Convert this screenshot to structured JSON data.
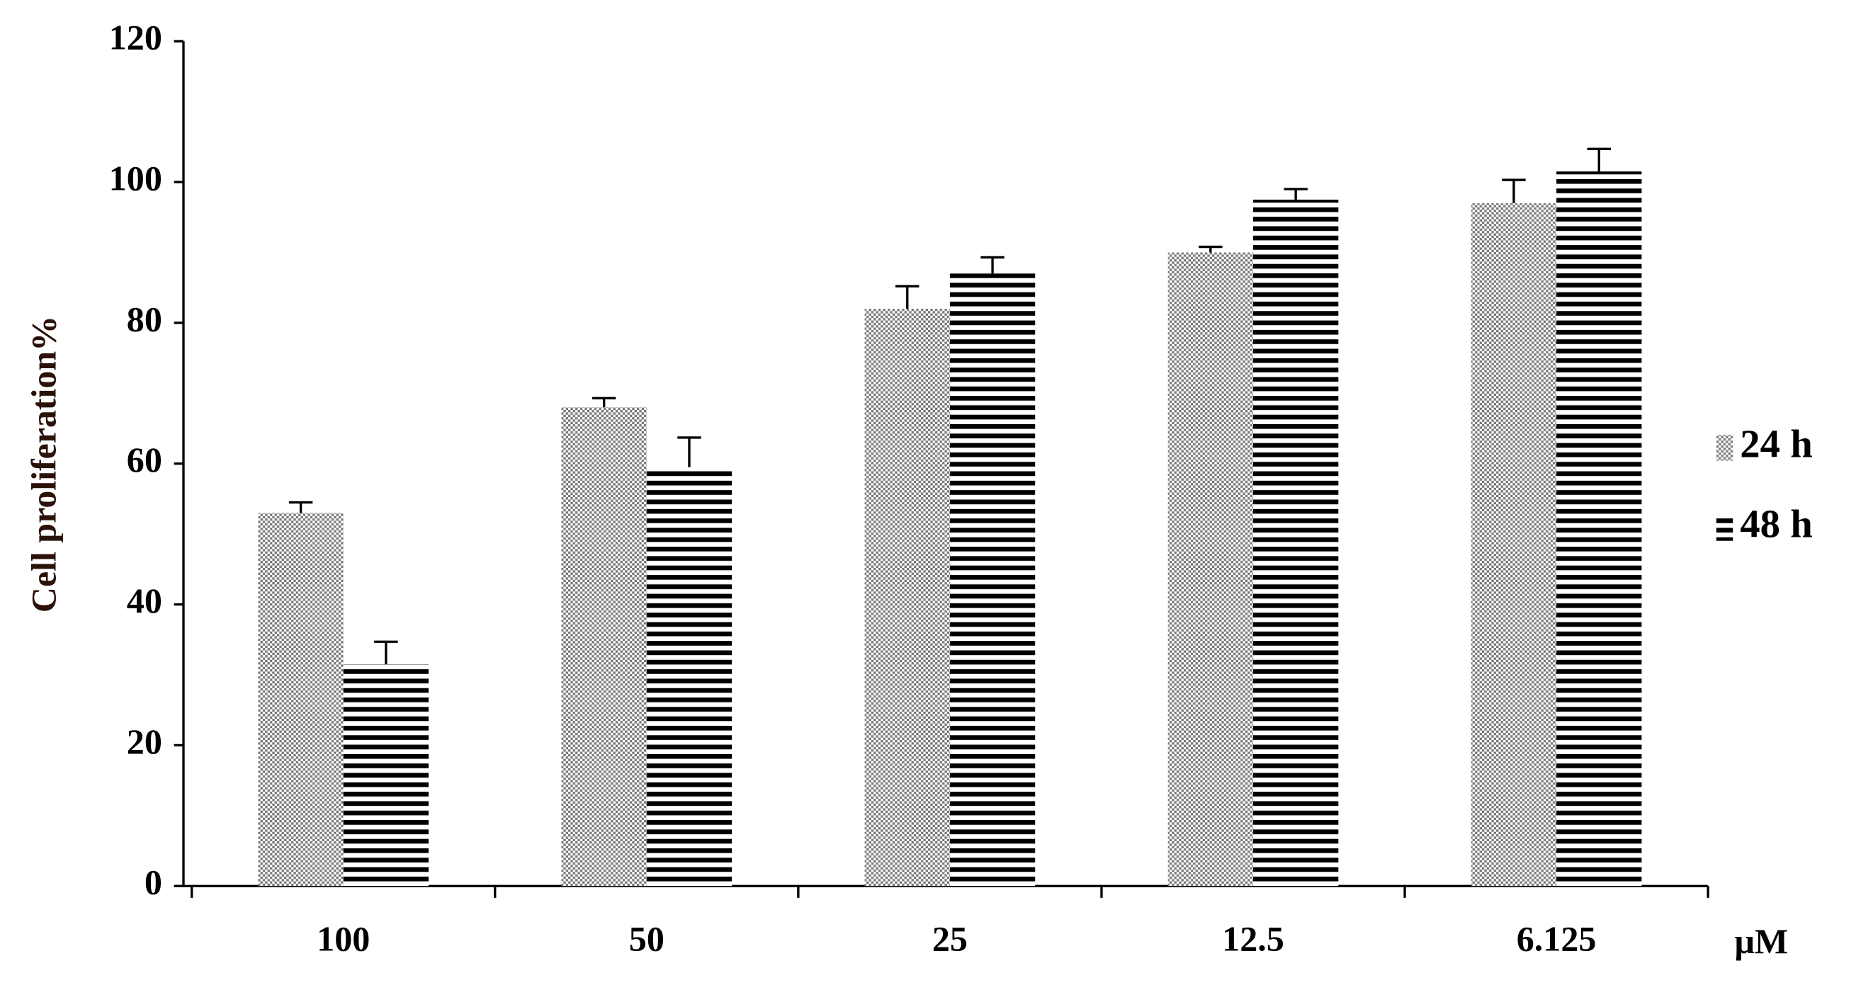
{
  "chart_data": {
    "type": "bar",
    "y_label": "Cell proliferation%",
    "x_unit": "μM",
    "categories": [
      "100",
      "50",
      "25",
      "12.5",
      "6.125"
    ],
    "series": [
      {
        "name": "24 h",
        "color": "#7a7a7a",
        "values": [
          53,
          68,
          82,
          90,
          97
        ],
        "errors": [
          1.5,
          1.3,
          3.2,
          0.8,
          3.3
        ]
      },
      {
        "name": "48 h",
        "color": "#000000",
        "values": [
          31.5,
          59.5,
          87,
          97.5,
          101.5
        ],
        "errors": [
          3.2,
          4.2,
          2.3,
          1.5,
          3.2
        ]
      }
    ],
    "ylim": [
      0,
      120
    ],
    "yticks": [
      0,
      20,
      40,
      60,
      80,
      100,
      120
    ],
    "legend": "right"
  }
}
